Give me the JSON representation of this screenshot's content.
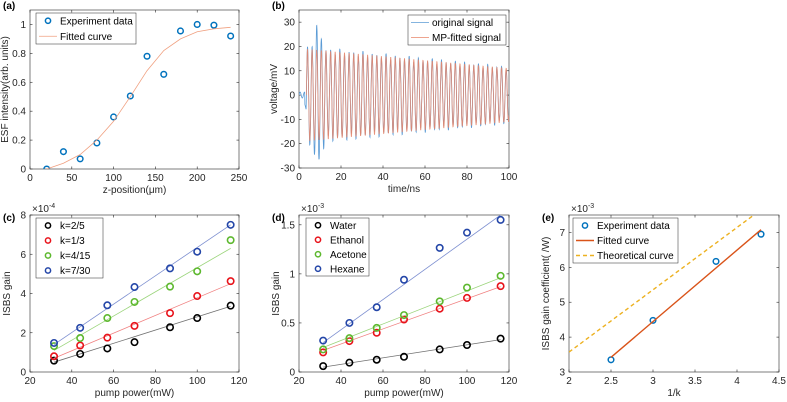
{
  "chart_data": [
    {
      "id": "a",
      "panel_label": "(a)",
      "type": "scatter",
      "xlabel": "z-position(μm)",
      "ylabel": "ESF intensity(arb. units)",
      "xlim": [
        0,
        250
      ],
      "ylim": [
        0,
        1.1
      ],
      "xticks": [
        0,
        50,
        100,
        150,
        200,
        250
      ],
      "yticks": [
        0,
        0.2,
        0.4,
        0.6,
        0.8,
        1
      ],
      "legend_position": "top-left",
      "series": [
        {
          "name": "Experiment data",
          "kind": "markers",
          "color": "#0072BD",
          "x": [
            20,
            40,
            60,
            80,
            100,
            120,
            140,
            160,
            180,
            200,
            220,
            240
          ],
          "y": [
            0,
            0.12,
            0.07,
            0.18,
            0.36,
            0.505,
            0.78,
            0.655,
            0.955,
            1.0,
            0.995,
            0.92
          ]
        },
        {
          "name": "Fitted curve",
          "kind": "line",
          "color": "#F0A080",
          "x": [
            20,
            40,
            60,
            80,
            100,
            120,
            140,
            160,
            180,
            200,
            220,
            240
          ],
          "y": [
            0,
            0.04,
            0.1,
            0.2,
            0.33,
            0.5,
            0.68,
            0.82,
            0.9,
            0.95,
            0.97,
            0.98
          ]
        }
      ]
    },
    {
      "id": "b",
      "panel_label": "(b)",
      "type": "line",
      "xlabel": "time/ns",
      "ylabel": "voltage/mV",
      "xlim": [
        0,
        100
      ],
      "ylim": [
        -30,
        35
      ],
      "xticks": [
        0,
        20,
        40,
        60,
        80,
        100
      ],
      "yticks": [
        -30,
        -20,
        -10,
        0,
        10,
        20,
        30
      ],
      "legend_position": "top-right",
      "signal_model": {
        "start_ns": 3.5,
        "period_ns": 2.2,
        "amplitude_start_mV": 19,
        "amplitude_end_mV": 11
      },
      "series": [
        {
          "name": "original signal",
          "kind": "line",
          "color": "#5B9BD5"
        },
        {
          "name": "MP-fitted signal",
          "kind": "line",
          "color": "#E8866A"
        }
      ]
    },
    {
      "id": "c",
      "panel_label": "(c)",
      "type": "scatter",
      "xlabel": "pump power(mW)",
      "ylabel": "ISBS gain",
      "exponent": "×10",
      "exponent_power": "-4",
      "xlim": [
        20,
        120
      ],
      "ylim": [
        0,
        8
      ],
      "xticks": [
        20,
        40,
        60,
        80,
        100,
        120
      ],
      "yticks": [
        0,
        2,
        4,
        6,
        8
      ],
      "legend_position": "top-left",
      "x": [
        31.5,
        44,
        57,
        70,
        87,
        100,
        116
      ],
      "series": [
        {
          "name": "k=2/5",
          "color": "#000000",
          "fit_color": "#707070",
          "y": [
            0.58,
            0.92,
            1.2,
            1.52,
            2.28,
            2.75,
            3.38
          ],
          "fit": [
            0.5,
            3.35
          ]
        },
        {
          "name": "k=1/3",
          "color": "#E8131B",
          "fit_color": "#F08080",
          "y": [
            0.8,
            1.35,
            1.75,
            2.35,
            3.0,
            3.87,
            4.63
          ],
          "fit": [
            0.7,
            4.5
          ]
        },
        {
          "name": "k=4/15",
          "color": "#5DB82E",
          "fit_color": "#9AD47A",
          "y": [
            1.32,
            1.73,
            2.75,
            3.57,
            4.35,
            5.13,
            6.72
          ],
          "fit": [
            1.1,
            6.3
          ]
        },
        {
          "name": "k=7/30",
          "color": "#2446A8",
          "fit_color": "#7D8FD0",
          "y": [
            1.48,
            2.25,
            3.4,
            4.33,
            5.28,
            6.13,
            7.5
          ],
          "fit": [
            1.4,
            7.5
          ]
        }
      ]
    },
    {
      "id": "d",
      "panel_label": "(d)",
      "type": "scatter",
      "xlabel": "pump power(mW)",
      "ylabel": "ISBS gain",
      "exponent": "×10",
      "exponent_power": "-3",
      "xlim": [
        20,
        120
      ],
      "ylim": [
        0,
        1.6
      ],
      "xticks": [
        20,
        40,
        60,
        80,
        100,
        120
      ],
      "yticks": [
        0,
        0.5,
        1,
        1.5
      ],
      "legend_position": "top-left",
      "x": [
        31.5,
        44,
        57,
        70,
        87,
        100,
        116
      ],
      "series": [
        {
          "name": "Water",
          "color": "#000000",
          "fit_color": "#707070",
          "y": [
            0.06,
            0.095,
            0.125,
            0.155,
            0.23,
            0.275,
            0.34
          ],
          "fit": [
            0.05,
            0.33
          ]
        },
        {
          "name": "Ethanol",
          "color": "#E8131B",
          "fit_color": "#F08080",
          "y": [
            0.2,
            0.315,
            0.4,
            0.535,
            0.645,
            0.755,
            0.875
          ],
          "fit": [
            0.22,
            0.87
          ]
        },
        {
          "name": "Acetone",
          "color": "#5DB82E",
          "fit_color": "#9AD47A",
          "y": [
            0.23,
            0.345,
            0.45,
            0.58,
            0.72,
            0.86,
            0.98
          ],
          "fit": [
            0.25,
            0.96
          ]
        },
        {
          "name": "Hexane",
          "color": "#2446A8",
          "fit_color": "#7D8FD0",
          "y": [
            0.32,
            0.5,
            0.66,
            0.94,
            1.265,
            1.42,
            1.55
          ],
          "fit": [
            0.3,
            1.6
          ]
        }
      ]
    },
    {
      "id": "e",
      "panel_label": "(e)",
      "type": "scatter",
      "xlabel": "1/k",
      "ylabel": "ISBS gain coefficient( /W)",
      "exponent": "×10",
      "exponent_power": "-3",
      "xlim": [
        2,
        4.5
      ],
      "ylim": [
        3,
        7.5
      ],
      "xticks": [
        2,
        2.5,
        3,
        3.5,
        4,
        4.5
      ],
      "yticks": [
        3,
        4,
        5,
        6,
        7
      ],
      "legend_position": "top-left",
      "series": [
        {
          "name": "Experiment data",
          "kind": "markers",
          "color": "#0072BD",
          "x": [
            2.5,
            3,
            3.75,
            4.286
          ],
          "y": [
            3.35,
            4.48,
            6.17,
            6.95
          ]
        },
        {
          "name": "Fitted curve",
          "kind": "line",
          "color": "#D95319",
          "x": [
            2.5,
            4.286
          ],
          "y": [
            3.42,
            7.08
          ]
        },
        {
          "name": "Theoretical curve",
          "kind": "dashed",
          "color": "#EDB120",
          "x": [
            2,
            4.2
          ],
          "y": [
            3.57,
            7.5
          ]
        }
      ]
    }
  ]
}
